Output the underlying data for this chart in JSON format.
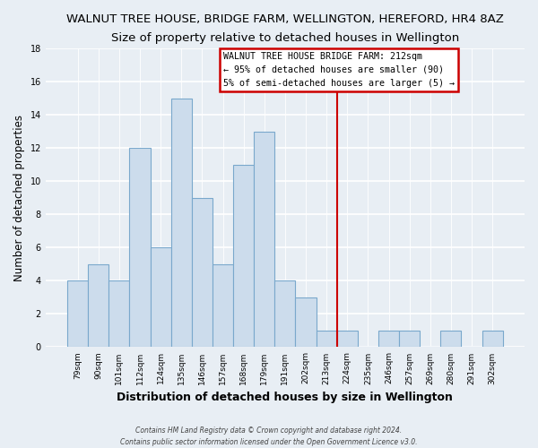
{
  "title": "WALNUT TREE HOUSE, BRIDGE FARM, WELLINGTON, HEREFORD, HR4 8AZ",
  "subtitle": "Size of property relative to detached houses in Wellington",
  "xlabel": "Distribution of detached houses by size in Wellington",
  "ylabel": "Number of detached properties",
  "bar_labels": [
    "79sqm",
    "90sqm",
    "101sqm",
    "112sqm",
    "124sqm",
    "135sqm",
    "146sqm",
    "157sqm",
    "168sqm",
    "179sqm",
    "191sqm",
    "202sqm",
    "213sqm",
    "224sqm",
    "235sqm",
    "246sqm",
    "257sqm",
    "269sqm",
    "280sqm",
    "291sqm",
    "302sqm"
  ],
  "bar_values": [
    4,
    5,
    4,
    12,
    6,
    15,
    9,
    5,
    11,
    13,
    4,
    3,
    1,
    1,
    0,
    1,
    1,
    0,
    1,
    0,
    1
  ],
  "bar_color": "#ccdcec",
  "bar_edge_color": "#7aa8cc",
  "vline_color": "#cc0000",
  "annotation_title": "WALNUT TREE HOUSE BRIDGE FARM: 212sqm",
  "annotation_line1": "← 95% of detached houses are smaller (90)",
  "annotation_line2": "5% of semi-detached houses are larger (5) →",
  "ylim": [
    0,
    18
  ],
  "yticks": [
    0,
    2,
    4,
    6,
    8,
    10,
    12,
    14,
    16,
    18
  ],
  "footer1": "Contains HM Land Registry data © Crown copyright and database right 2024.",
  "footer2": "Contains public sector information licensed under the Open Government Licence v3.0.",
  "bg_color": "#e8eef4",
  "grid_color": "#ffffff",
  "title_fontsize": 9.5,
  "subtitle_fontsize": 8.5
}
